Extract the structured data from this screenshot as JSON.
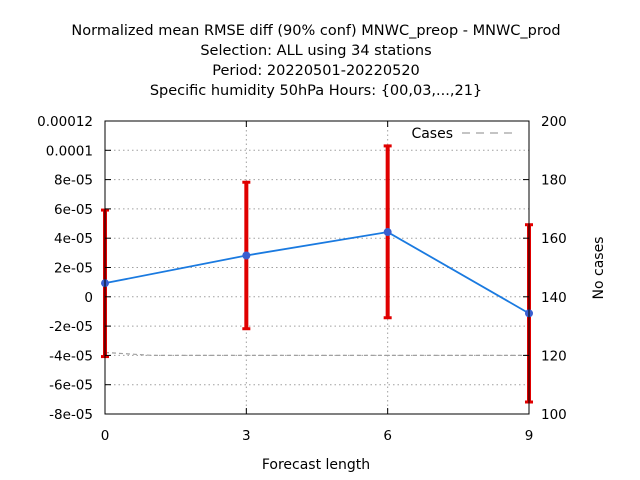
{
  "chart_data": {
    "type": "line",
    "title_lines": [
      "Normalized mean RMSE diff (90% conf) MNWC_preop - MNWC_prod",
      "Selection: ALL using    34 stations",
      "Period: 20220501-20220520",
      "Specific humidity 50hPa   Hours: {00,03,...,21}"
    ],
    "xlabel": "Forecast length",
    "ylabel": "",
    "y2label": "No cases",
    "x_ticks": [
      0,
      3,
      6,
      9
    ],
    "y_ticks": [
      "-8e-05",
      "-6e-05",
      "-4e-05",
      "-2e-05",
      "0",
      "2e-05",
      "4e-05",
      "6e-05",
      "8e-05",
      "0.0001",
      "0.00012"
    ],
    "y_tick_values": [
      -8e-05,
      -6e-05,
      -4e-05,
      -2e-05,
      0,
      2e-05,
      4e-05,
      6e-05,
      8e-05,
      0.0001,
      0.00012
    ],
    "y2_ticks": [
      "100",
      "120",
      "140",
      "160",
      "180",
      "200"
    ],
    "y2_tick_values": [
      100,
      120,
      140,
      160,
      180,
      200
    ],
    "xlim": [
      0,
      9
    ],
    "ylim": [
      -8e-05,
      0.00012
    ],
    "y2lim": [
      100,
      200
    ],
    "grid": true,
    "legend_position": "top-right",
    "series": [
      {
        "values": [
          9.3e-06,
          2.82e-05,
          4.42e-05,
          -1.13e-05
        ],
        "error_low": [
          -4.08e-05,
          -2.18e-05,
          -1.43e-05,
          -7.18e-05
        ],
        "error_high": [
          5.92e-05,
          7.82e-05,
          0.000103,
          4.92e-05
        ],
        "color": "#1a7ae0",
        "marker_color": "#3a5fd0",
        "error_color": "#e00000"
      },
      {
        "name": "Cases",
        "axis": "right",
        "x": [
          0,
          1,
          2,
          3,
          4,
          5,
          6,
          7,
          8,
          9
        ],
        "values": [
          121,
          120,
          120,
          120,
          120,
          120,
          120,
          120,
          120,
          120
        ],
        "color": "#a0a0a0",
        "style": "dashed"
      }
    ]
  }
}
